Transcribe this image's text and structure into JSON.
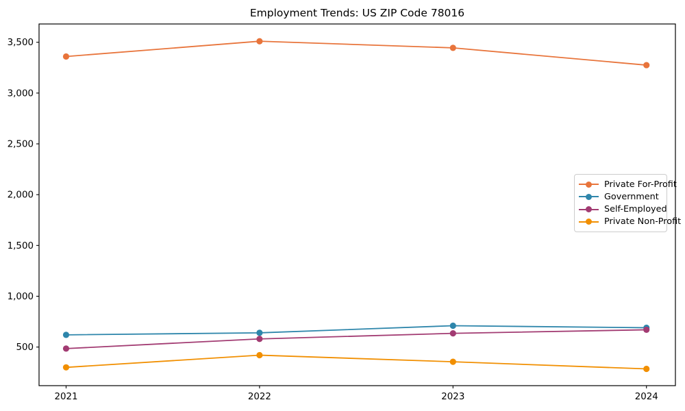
{
  "title": "Employment Trends: US ZIP Code 78016",
  "chart_data": {
    "type": "line",
    "title": "Employment Trends: US ZIP Code 78016",
    "xlabel": "",
    "ylabel": "",
    "grid": false,
    "legend_position": "right-center",
    "categories": [
      "2021",
      "2022",
      "2023",
      "2024"
    ],
    "yticks": [
      500,
      1000,
      1500,
      2000,
      2500,
      3000,
      3500
    ],
    "y_tick_labels": [
      "500",
      "1,000",
      "1,500",
      "2,000",
      "2,500",
      "3,000",
      "3,500"
    ],
    "ylim": [
      120,
      3680
    ],
    "series": [
      {
        "name": "Private For-Profit",
        "color": "#E8743B",
        "values": [
          3360,
          3510,
          3445,
          3275
        ]
      },
      {
        "name": "Government",
        "color": "#2E86AB",
        "values": [
          620,
          640,
          710,
          690
        ]
      },
      {
        "name": "Self-Employed",
        "color": "#A23B72",
        "values": [
          485,
          580,
          635,
          670
        ]
      },
      {
        "name": "Private Non-Profit",
        "color": "#F18F01",
        "values": [
          300,
          420,
          355,
          285
        ]
      }
    ],
    "marker": "circle",
    "axis_color": "#000000"
  }
}
